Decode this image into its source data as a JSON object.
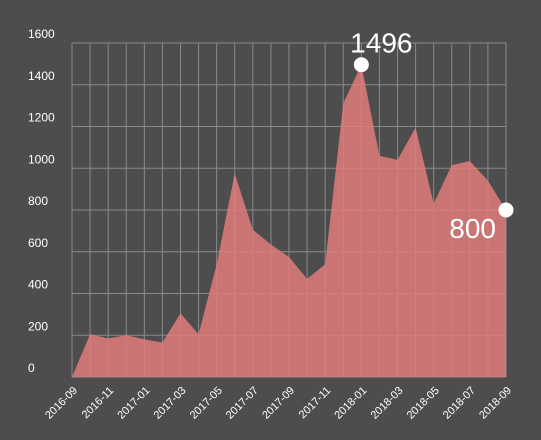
{
  "chart_data": {
    "type": "area",
    "title": "",
    "xlabel": "",
    "ylabel": "",
    "ylim": [
      0,
      1600
    ],
    "y_ticks": [
      0,
      200,
      400,
      600,
      800,
      1000,
      1200,
      1400,
      1600
    ],
    "x_tick_labels": [
      "2016-09",
      "2016-11",
      "2017-01",
      "2017-03",
      "2017-05",
      "2017-07",
      "2017-09",
      "2017-11",
      "2018-01",
      "2018-03",
      "2018-05",
      "2018-07",
      "2018-09"
    ],
    "grid": true,
    "series": [
      {
        "x": [
          "2016-09",
          "2016-10",
          "2016-11",
          "2016-12",
          "2017-01",
          "2017-02",
          "2017-03",
          "2017-04",
          "2017-05",
          "2017-06",
          "2017-07",
          "2017-08",
          "2017-09",
          "2017-10",
          "2017-11",
          "2017-12",
          "2018-01",
          "2018-02",
          "2018-03",
          "2018-04",
          "2018-05",
          "2018-06",
          "2018-07",
          "2018-08",
          "2018-09"
        ],
        "values": [
          0,
          205,
          185,
          200,
          180,
          165,
          305,
          205,
          540,
          975,
          705,
          635,
          575,
          470,
          540,
          1310,
          1496,
          1060,
          1040,
          1195,
          830,
          1015,
          1035,
          940,
          800
        ],
        "color": "#e07b7b"
      }
    ],
    "callouts": [
      {
        "x": "2018-01",
        "label": "1496"
      },
      {
        "x": "2018-09",
        "label": "800"
      }
    ]
  }
}
